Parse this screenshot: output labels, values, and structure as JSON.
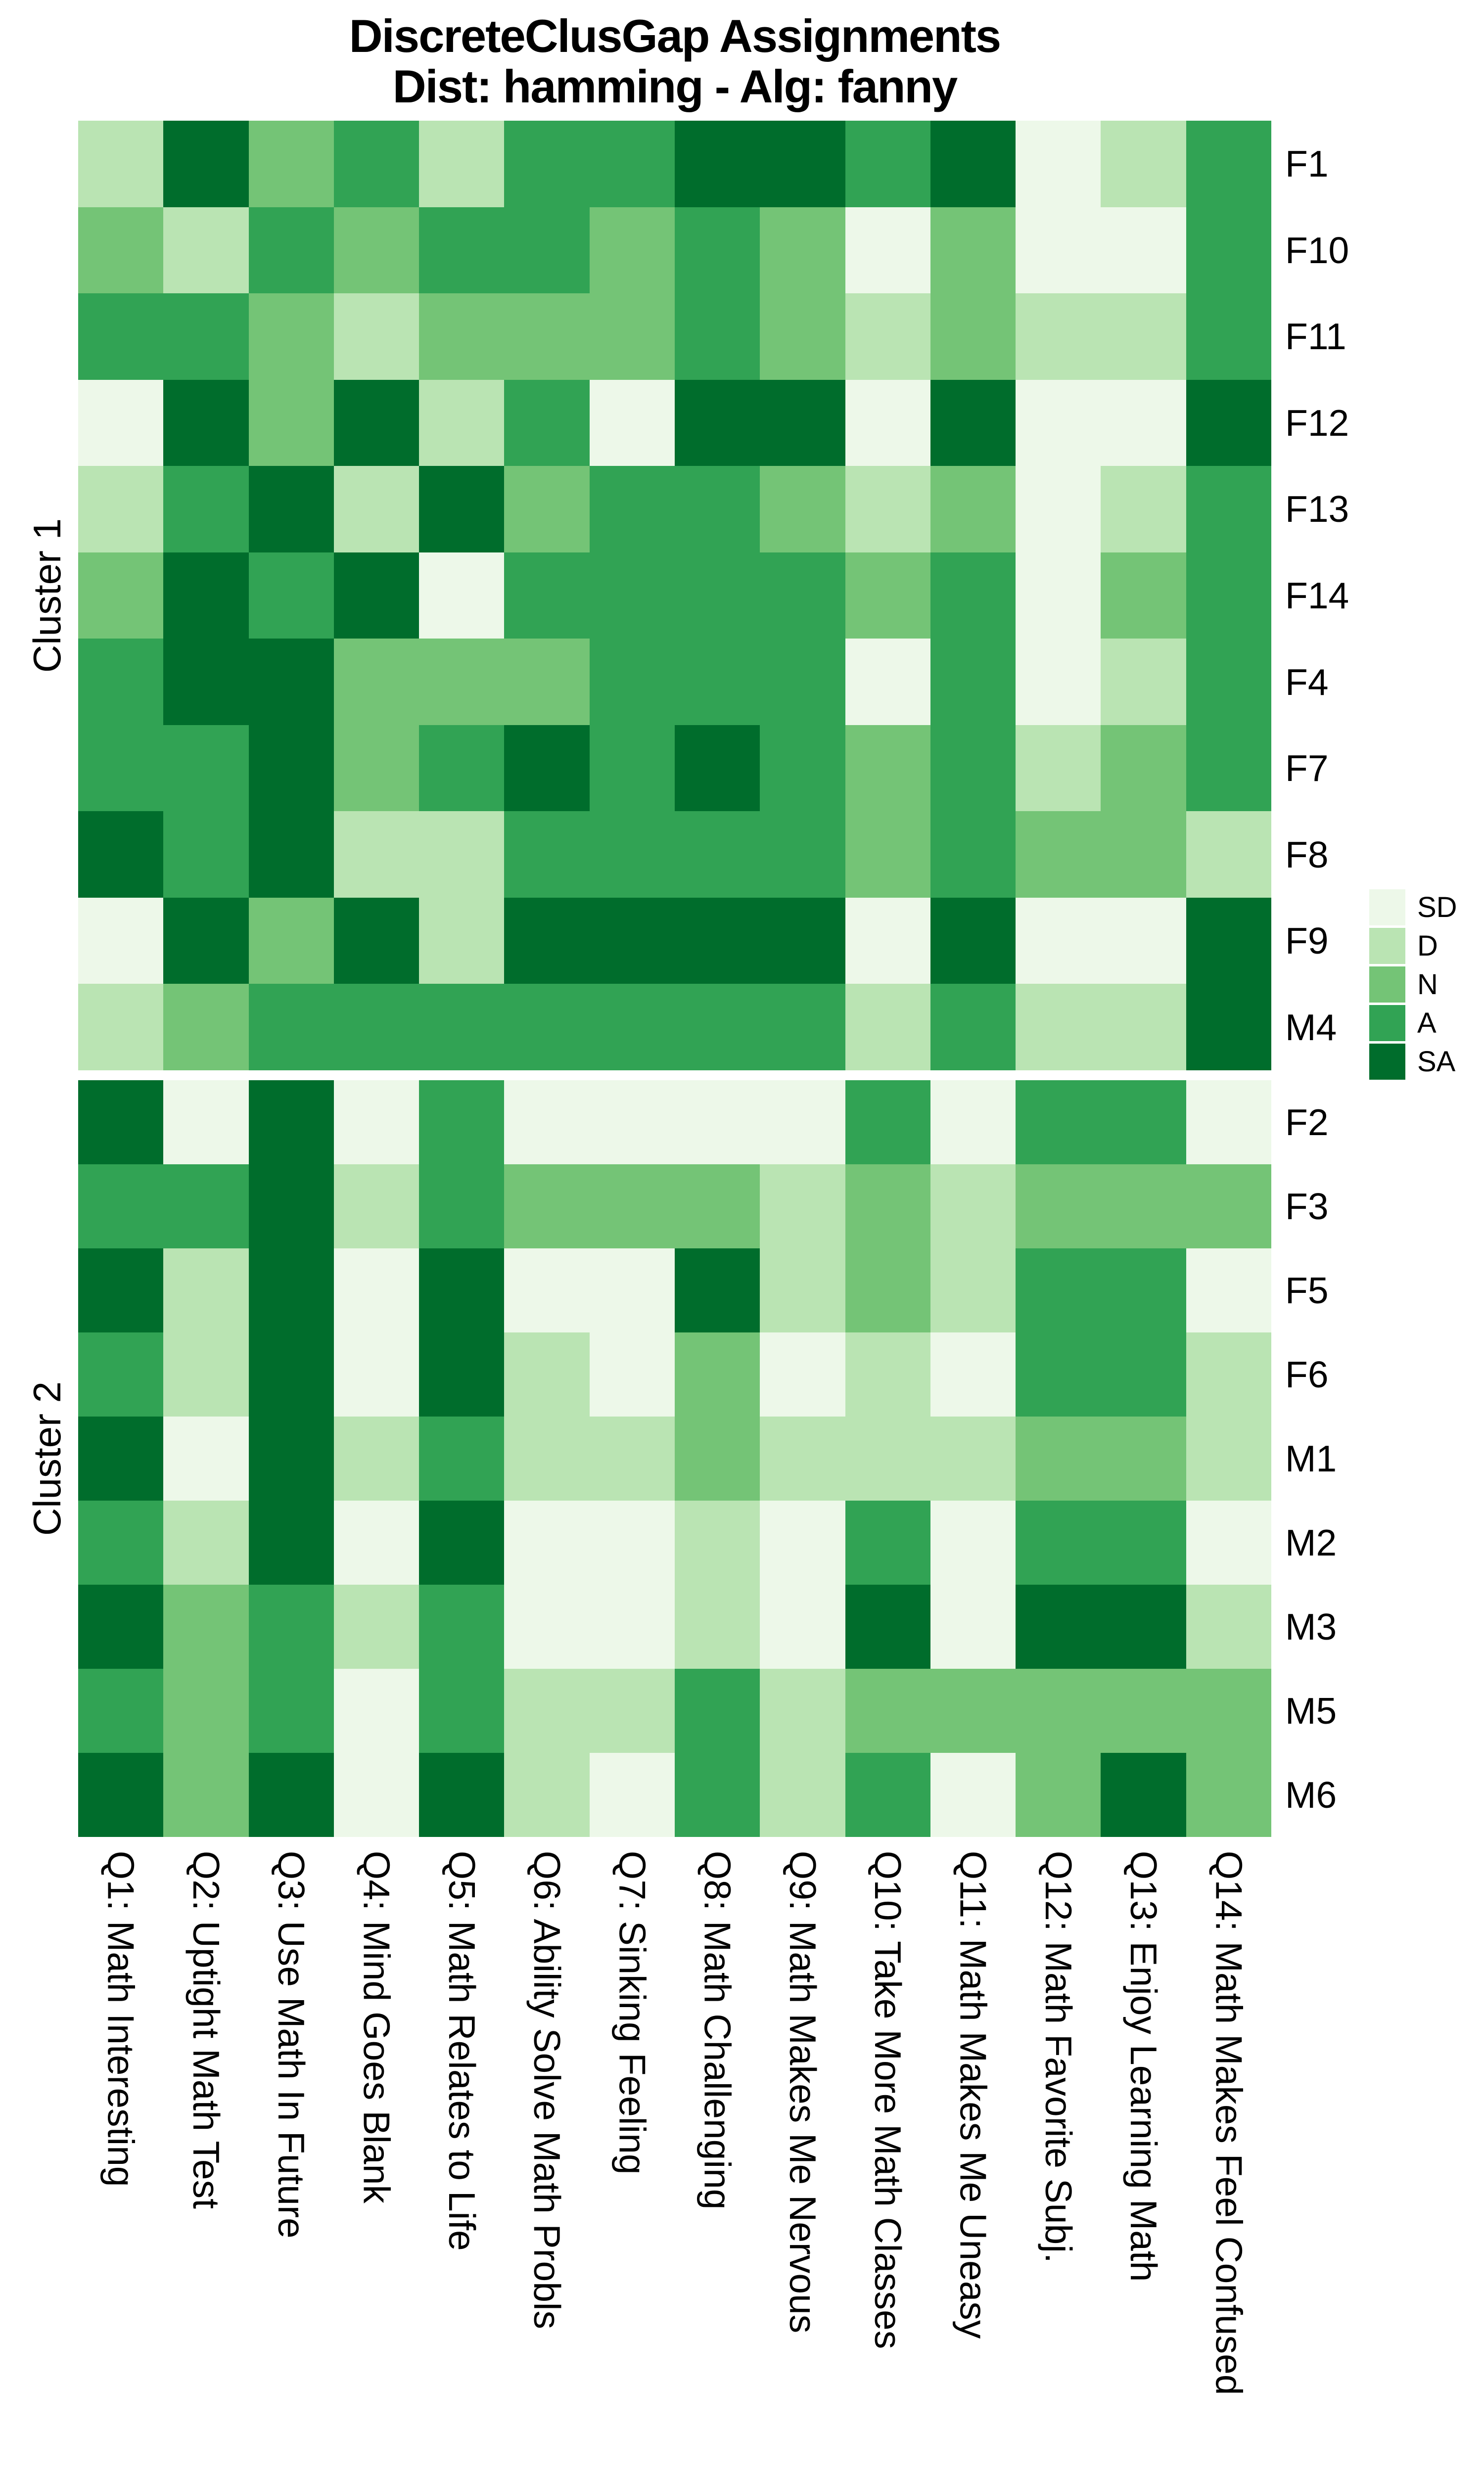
{
  "title": {
    "line1": "DiscreteClusGap Assignments",
    "line2": "Dist: hamming - Alg: fanny"
  },
  "legend": {
    "position": "right",
    "items": [
      {
        "label": "SD",
        "color": "#edf8e9"
      },
      {
        "label": "D",
        "color": "#bae4b3"
      },
      {
        "label": "N",
        "color": "#74c476"
      },
      {
        "label": "A",
        "color": "#31a354"
      },
      {
        "label": "SA",
        "color": "#006d2c"
      }
    ]
  },
  "chart_data": {
    "type": "heatmap",
    "title": "DiscreteClusGap Assignments",
    "subtitle": "Dist: hamming - Alg: fanny",
    "value_scale": [
      "SD",
      "D",
      "N",
      "A",
      "SA"
    ],
    "palette": {
      "SD": "#edf8e9",
      "D": "#bae4b3",
      "N": "#74c476",
      "A": "#31a354",
      "SA": "#006d2c"
    },
    "columns": [
      "Q1: Math Interesting",
      "Q2: Uptight Math Test",
      "Q3: Use Math In Future",
      "Q4: Mind Goes Blank",
      "Q5: Math Relates to Life",
      "Q6: Ability Solve Math Probls",
      "Q7: Sinking Feeling",
      "Q8: Math Challenging",
      "Q9: Math Makes Me Nervous",
      "Q10: Take More Math Classes",
      "Q11: Math Makes Me Uneasy",
      "Q12: Math Favorite Subj.",
      "Q13: Enjoy Learning Math",
      "Q14: Math Makes Feel Confused"
    ],
    "clusters": [
      {
        "name": "Cluster 1",
        "rows": [
          {
            "id": "F1",
            "values": [
              "D",
              "SA",
              "N",
              "A",
              "D",
              "A",
              "A",
              "SA",
              "SA",
              "A",
              "SA",
              "SD",
              "D",
              "A"
            ]
          },
          {
            "id": "F10",
            "values": [
              "N",
              "D",
              "A",
              "N",
              "A",
              "A",
              "N",
              "A",
              "N",
              "SD",
              "N",
              "SD",
              "SD",
              "A"
            ]
          },
          {
            "id": "F11",
            "values": [
              "A",
              "A",
              "N",
              "D",
              "N",
              "N",
              "N",
              "A",
              "N",
              "D",
              "N",
              "D",
              "D",
              "A"
            ]
          },
          {
            "id": "F12",
            "values": [
              "SD",
              "SA",
              "N",
              "SA",
              "D",
              "A",
              "SD",
              "SA",
              "SA",
              "SD",
              "SA",
              "SD",
              "SD",
              "SA"
            ]
          },
          {
            "id": "F13",
            "values": [
              "D",
              "A",
              "SA",
              "D",
              "SA",
              "N",
              "A",
              "A",
              "N",
              "D",
              "N",
              "SD",
              "D",
              "A"
            ]
          },
          {
            "id": "F14",
            "values": [
              "N",
              "SA",
              "A",
              "SA",
              "SD",
              "A",
              "A",
              "A",
              "A",
              "N",
              "A",
              "SD",
              "N",
              "A"
            ]
          },
          {
            "id": "F4",
            "values": [
              "A",
              "SA",
              "SA",
              "N",
              "N",
              "N",
              "A",
              "A",
              "A",
              "SD",
              "A",
              "SD",
              "D",
              "A"
            ]
          },
          {
            "id": "F7",
            "values": [
              "A",
              "A",
              "SA",
              "N",
              "A",
              "SA",
              "A",
              "SA",
              "A",
              "N",
              "A",
              "D",
              "N",
              "A"
            ]
          },
          {
            "id": "F8",
            "values": [
              "SA",
              "A",
              "SA",
              "D",
              "D",
              "A",
              "A",
              "A",
              "A",
              "N",
              "A",
              "N",
              "N",
              "D"
            ]
          },
          {
            "id": "F9",
            "values": [
              "SD",
              "SA",
              "N",
              "SA",
              "D",
              "SA",
              "SA",
              "SA",
              "SA",
              "SD",
              "SA",
              "SD",
              "SD",
              "SA"
            ]
          },
          {
            "id": "M4",
            "values": [
              "D",
              "N",
              "A",
              "A",
              "A",
              "A",
              "A",
              "A",
              "A",
              "D",
              "A",
              "D",
              "D",
              "SA"
            ]
          }
        ]
      },
      {
        "name": "Cluster 2",
        "rows": [
          {
            "id": "F2",
            "values": [
              "SA",
              "SD",
              "SA",
              "SD",
              "A",
              "SD",
              "SD",
              "SD",
              "SD",
              "A",
              "SD",
              "A",
              "A",
              "SD"
            ]
          },
          {
            "id": "F3",
            "values": [
              "A",
              "A",
              "SA",
              "D",
              "A",
              "N",
              "N",
              "N",
              "D",
              "N",
              "D",
              "N",
              "N",
              "N"
            ]
          },
          {
            "id": "F5",
            "values": [
              "SA",
              "D",
              "SA",
              "SD",
              "SA",
              "SD",
              "SD",
              "SA",
              "D",
              "N",
              "D",
              "A",
              "A",
              "SD"
            ]
          },
          {
            "id": "F6",
            "values": [
              "A",
              "D",
              "SA",
              "SD",
              "SA",
              "D",
              "SD",
              "N",
              "SD",
              "D",
              "SD",
              "A",
              "A",
              "D"
            ]
          },
          {
            "id": "M1",
            "values": [
              "SA",
              "SD",
              "SA",
              "D",
              "A",
              "D",
              "D",
              "N",
              "D",
              "D",
              "D",
              "N",
              "N",
              "D"
            ]
          },
          {
            "id": "M2",
            "values": [
              "A",
              "D",
              "SA",
              "SD",
              "SA",
              "SD",
              "SD",
              "D",
              "SD",
              "A",
              "SD",
              "A",
              "A",
              "SD"
            ]
          },
          {
            "id": "M3",
            "values": [
              "SA",
              "N",
              "A",
              "D",
              "A",
              "SD",
              "SD",
              "D",
              "SD",
              "SA",
              "SD",
              "SA",
              "SA",
              "D"
            ]
          },
          {
            "id": "M5",
            "values": [
              "A",
              "N",
              "A",
              "SD",
              "A",
              "D",
              "D",
              "A",
              "D",
              "N",
              "N",
              "N",
              "N",
              "N"
            ]
          },
          {
            "id": "M6",
            "values": [
              "SA",
              "N",
              "SA",
              "SD",
              "SA",
              "D",
              "SD",
              "A",
              "D",
              "A",
              "SD",
              "N",
              "SA",
              "N"
            ]
          }
        ]
      }
    ],
    "layout": {
      "grid": false,
      "legend_position": "right",
      "x_labels_rotation": 90,
      "cluster_gap": 20
    }
  }
}
